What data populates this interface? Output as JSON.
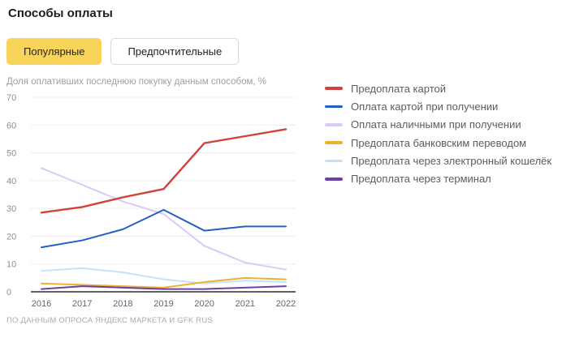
{
  "header": {
    "title": "Способы оплаты"
  },
  "tabs": [
    {
      "label": "Популярные",
      "active": true
    },
    {
      "label": "Предпочтительные",
      "active": false
    }
  ],
  "colors": {
    "active_tab_bg": "#f9d45b",
    "grid": "#ececec",
    "axis": "#2f2f2f"
  },
  "chart_data": {
    "type": "line",
    "title": "Способы оплаты",
    "subtitle": "Доля оплативших последнюю покупку данным способом, %",
    "categories": [
      "2016",
      "2017",
      "2018",
      "2019",
      "2020",
      "2021",
      "2022"
    ],
    "series": [
      {
        "name": "Предоплата картой",
        "color": "#d2413c",
        "values": [
          28.5,
          30.5,
          34,
          37,
          53.5,
          56,
          58.5
        ]
      },
      {
        "name": "Оплата картой при получении",
        "color": "#2160c4",
        "values": [
          16,
          18.5,
          22.5,
          29.5,
          22,
          23.5,
          23.5
        ]
      },
      {
        "name": "Оплата наличными при получении",
        "color": "#ddc8f7",
        "values": [
          44.5,
          38.5,
          32.5,
          28,
          16.5,
          10.5,
          8
        ]
      },
      {
        "name": "Предоплата банковским переводом",
        "color": "#edb12f",
        "values": [
          3,
          2.5,
          2,
          1.5,
          3.5,
          5,
          4.5
        ]
      },
      {
        "name": "Предоплата через электронный кошелёк",
        "color": "#c6e1f6",
        "values": [
          7.5,
          8.5,
          7,
          4.5,
          3,
          4,
          3.5
        ]
      },
      {
        "name": "Предоплата через терминал",
        "color": "#6a41a5",
        "values": [
          1,
          2,
          1.5,
          1,
          1,
          1.5,
          2
        ]
      }
    ],
    "ylim": [
      0,
      70
    ],
    "ytick_step": 10,
    "grid": true,
    "legend_position": "right"
  },
  "footer": {
    "source": "ПО ДАННЫМ ОПРОСА ЯНДЕКС МАРКЕТА И GFK RUS"
  }
}
